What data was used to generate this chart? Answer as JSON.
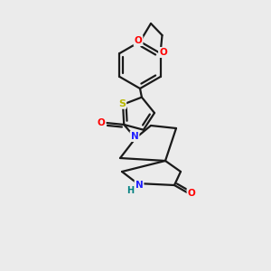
{
  "background_color": "#ebebeb",
  "bond_color": "#1a1a1a",
  "atom_colors": {
    "O": "#ff0000",
    "N": "#2020ff",
    "S": "#b8b800",
    "H": "#008080",
    "C": "#1a1a1a"
  },
  "figsize": [
    3.0,
    3.0
  ],
  "dpi": 100
}
